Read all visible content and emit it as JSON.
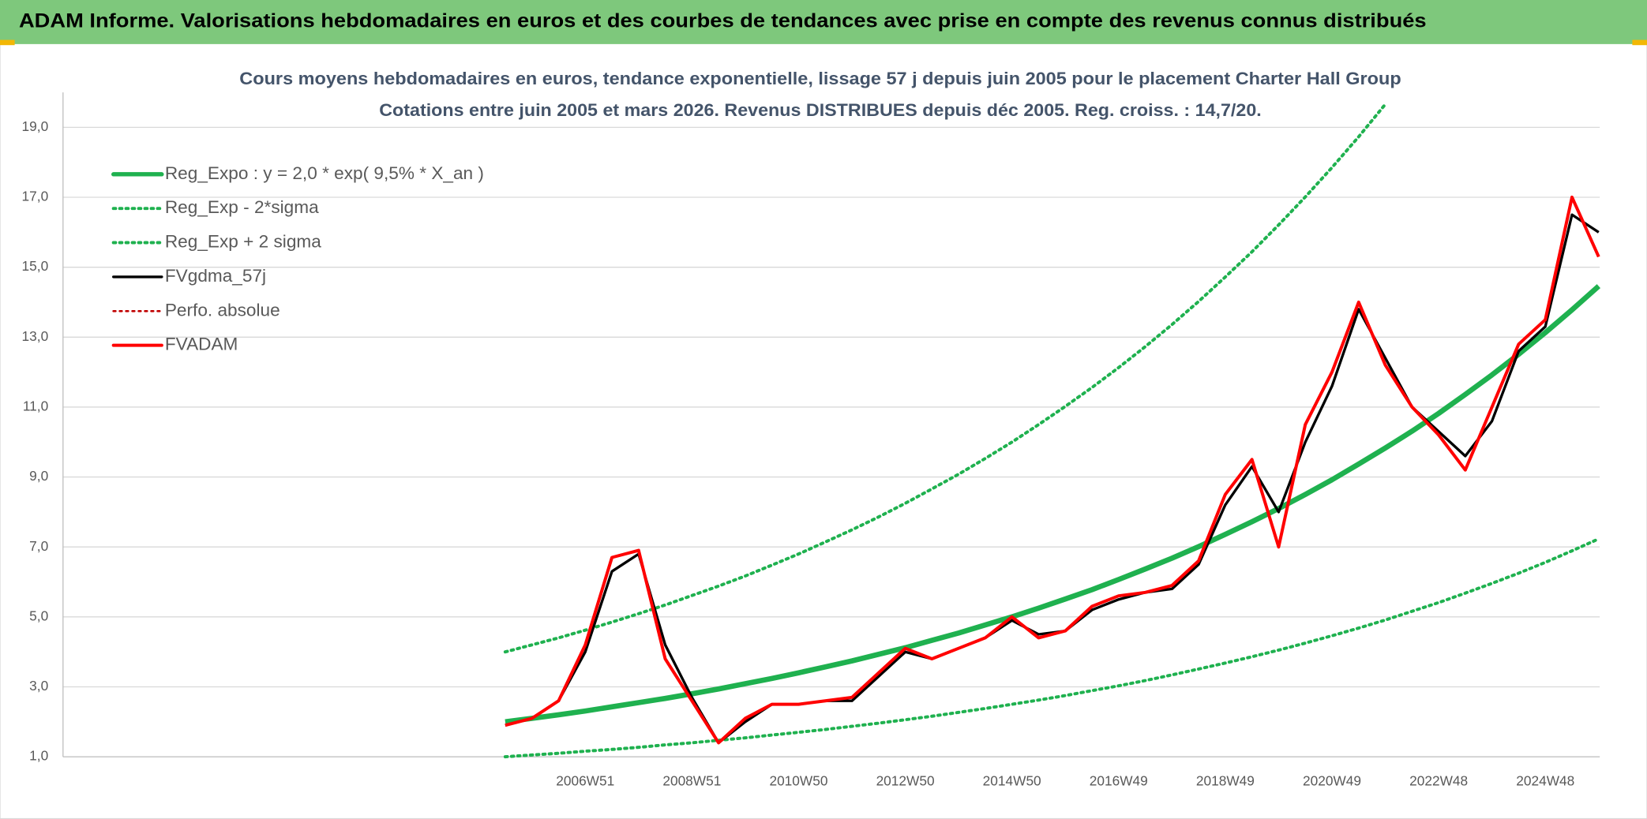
{
  "chart_data": {
    "type": "line",
    "header": "ADAM Informe. Valorisations hebdomadaires en euros et des courbes de tendances avec prise en compte des revenus connus distribués",
    "title": "Cours moyens hebdomadaires en euros, tendance exponentielle, lissage 57 j depuis juin 2005 pour le placement Charter Hall Group",
    "subtitle": "Cotations entre juin 2005 et mars 2026. Revenus DISTRIBUES depuis déc 2005. Reg. croiss. : 14,7/20.",
    "categories": [
      null,
      null,
      null,
      "2006W51",
      null,
      null,
      null,
      "2008W51",
      null,
      null,
      null,
      "2010W50",
      null,
      null,
      null,
      "2012W50",
      null,
      null,
      null,
      "2014W50",
      null,
      null,
      null,
      "2016W49",
      null,
      null,
      null,
      "2018W49",
      null,
      null,
      null,
      "2020W49",
      null,
      null,
      null,
      "2022W48",
      null,
      null,
      null,
      "2024W48",
      null,
      null
    ],
    "ylim": [
      1,
      20
    ],
    "yticks": [
      {
        "value": 1,
        "label": "1,0"
      },
      {
        "value": 3,
        "label": "3,0"
      },
      {
        "value": 5,
        "label": "5,0"
      },
      {
        "value": 7,
        "label": "7,0"
      },
      {
        "value": 9,
        "label": "9,0"
      },
      {
        "value": 11,
        "label": "11,0"
      },
      {
        "value": 13,
        "label": "13,0"
      },
      {
        "value": 15,
        "label": "15,0"
      },
      {
        "value": 17,
        "label": "17,0"
      },
      {
        "value": 19,
        "label": "19,0"
      }
    ],
    "grid": true,
    "legend": "top-left",
    "series": [
      {
        "name": "Reg_Expo : y = 2,0 * exp( 9,5% *  X_an )",
        "color": "#1fb14f",
        "line_style": "solid",
        "line_width": 5,
        "values": [
          2.0,
          2.1,
          2.2,
          2.31,
          2.43,
          2.55,
          2.67,
          2.8,
          2.94,
          3.09,
          3.24,
          3.4,
          3.57,
          3.74,
          3.93,
          4.12,
          4.33,
          4.54,
          4.77,
          5.0,
          5.25,
          5.51,
          5.78,
          6.07,
          6.37,
          6.68,
          7.01,
          7.36,
          7.72,
          8.1,
          8.5,
          8.92,
          9.37,
          9.83,
          10.31,
          10.82,
          11.36,
          11.92,
          12.51,
          13.13,
          13.78,
          14.46
        ]
      },
      {
        "name": "Reg_Exp - 2*sigma",
        "color": "#1fb14f",
        "line_style": "dotted",
        "line_width": 3,
        "values": [
          1.0,
          1.05,
          1.1,
          1.16,
          1.21,
          1.27,
          1.34,
          1.4,
          1.47,
          1.54,
          1.62,
          1.7,
          1.78,
          1.87,
          1.96,
          2.06,
          2.16,
          2.27,
          2.38,
          2.5,
          2.62,
          2.75,
          2.89,
          3.03,
          3.18,
          3.34,
          3.51,
          3.68,
          3.86,
          4.05,
          4.25,
          4.46,
          4.68,
          4.91,
          5.16,
          5.41,
          5.68,
          5.96,
          6.25,
          6.56,
          6.89,
          7.23
        ]
      },
      {
        "name": "Reg_Exp + 2 sigma",
        "color": "#1fb14f",
        "line_style": "dotted",
        "line_width": 3,
        "values": [
          4.0,
          4.2,
          4.4,
          4.62,
          4.85,
          5.09,
          5.34,
          5.61,
          5.88,
          6.17,
          6.48,
          6.8,
          7.14,
          7.49,
          7.86,
          8.25,
          8.66,
          9.08,
          9.53,
          10.0,
          10.5,
          11.02,
          11.56,
          12.13,
          12.73,
          13.36,
          14.02,
          14.72,
          15.44,
          16.21,
          17.01,
          17.85,
          18.73,
          19.66,
          null,
          null,
          null,
          null,
          null,
          null,
          null,
          null
        ]
      },
      {
        "name": "FVgdma_57j",
        "color": "#000000",
        "line_style": "solid",
        "line_width": 2.5,
        "values": [
          1.9,
          2.1,
          2.6,
          4.0,
          6.3,
          6.8,
          4.2,
          2.7,
          1.4,
          2.0,
          2.5,
          2.5,
          2.6,
          2.6,
          3.3,
          4.0,
          3.8,
          4.1,
          4.4,
          4.9,
          4.5,
          4.6,
          5.2,
          5.5,
          5.7,
          5.8,
          6.5,
          8.2,
          9.3,
          8.0,
          10.0,
          11.6,
          13.8,
          12.4,
          11.0,
          10.3,
          9.6,
          10.6,
          12.6,
          13.3,
          16.5,
          16.0
        ]
      },
      {
        "name": "Perfo. absolue",
        "color": "#c00000",
        "line_style": "dotted",
        "line_width": 2
      },
      {
        "name": "FVADAM",
        "color": "#ff0000",
        "line_style": "solid",
        "line_width": 3,
        "values": [
          1.9,
          2.1,
          2.6,
          4.2,
          6.7,
          6.9,
          3.8,
          2.6,
          1.4,
          2.1,
          2.5,
          2.5,
          2.6,
          2.7,
          3.4,
          4.1,
          3.8,
          4.1,
          4.4,
          5.0,
          4.4,
          4.6,
          5.3,
          5.6,
          5.7,
          5.9,
          6.6,
          8.5,
          9.5,
          7.0,
          10.5,
          12.0,
          14.0,
          12.2,
          11.0,
          10.2,
          9.2,
          11.0,
          12.8,
          13.5,
          17.0,
          15.3
        ]
      }
    ]
  }
}
